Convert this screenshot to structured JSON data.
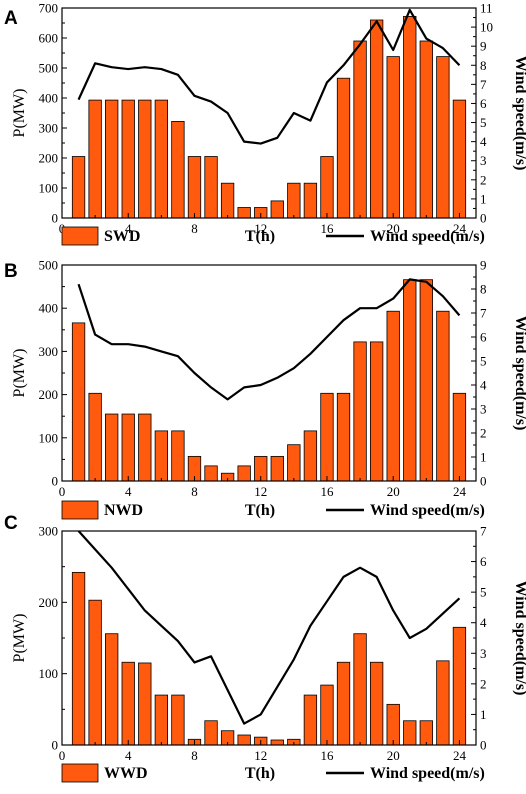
{
  "chart_data": [
    {
      "type": "bar",
      "panel": "A",
      "x": [
        1,
        2,
        3,
        4,
        5,
        6,
        7,
        8,
        9,
        10,
        11,
        12,
        13,
        14,
        15,
        16,
        17,
        18,
        19,
        20,
        21,
        22,
        23,
        24
      ],
      "xticks": [
        0,
        4,
        8,
        12,
        16,
        20,
        24
      ],
      "xlim": [
        0,
        25
      ],
      "xlabel": "T(h)",
      "ylabel": "P(MW)",
      "ylim": [
        0,
        700
      ],
      "yticks": [
        0,
        100,
        200,
        300,
        400,
        500,
        600,
        700
      ],
      "y2label": "Wind speed(m/s)",
      "y2lim": [
        0,
        11
      ],
      "y2ticks": [
        0,
        1,
        2,
        3,
        4,
        5,
        6,
        7,
        8,
        9,
        10,
        11
      ],
      "series": [
        {
          "name": "SWD",
          "kind": "bar",
          "color": "#FF5A0E",
          "values": [
            205,
            393,
            393,
            393,
            393,
            393,
            322,
            205,
            205,
            116,
            35,
            35,
            57,
            116,
            116,
            205,
            466,
            590,
            660,
            538,
            672,
            590,
            538,
            393
          ]
        },
        {
          "name": "Wind speed(m/s)",
          "kind": "line",
          "axis": "right",
          "color": "#000000",
          "values": [
            6.2,
            8.1,
            7.9,
            7.8,
            7.9,
            7.8,
            7.5,
            6.4,
            6.1,
            5.5,
            4.0,
            3.9,
            4.2,
            5.5,
            5.1,
            7.1,
            8.0,
            9.1,
            10.3,
            8.8,
            10.9,
            9.4,
            8.9,
            8.0
          ]
        }
      ]
    },
    {
      "type": "bar",
      "panel": "B",
      "x": [
        1,
        2,
        3,
        4,
        5,
        6,
        7,
        8,
        9,
        10,
        11,
        12,
        13,
        14,
        15,
        16,
        17,
        18,
        19,
        20,
        21,
        22,
        23,
        24
      ],
      "xticks": [
        0,
        4,
        8,
        12,
        16,
        20,
        24
      ],
      "xlim": [
        0,
        25
      ],
      "xlabel": "T(h)",
      "ylabel": "P(MW)",
      "ylim": [
        0,
        500
      ],
      "yticks": [
        0,
        100,
        200,
        300,
        400,
        500
      ],
      "y2label": "Wind speed(m/s)",
      "y2lim": [
        0,
        9
      ],
      "y2ticks": [
        0,
        1,
        2,
        3,
        4,
        5,
        6,
        7,
        8,
        9
      ],
      "series": [
        {
          "name": "NWD",
          "kind": "bar",
          "color": "#FF5A0E",
          "values": [
            366,
            203,
            155,
            155,
            155,
            116,
            116,
            57,
            35,
            18,
            35,
            57,
            57,
            84,
            116,
            203,
            203,
            322,
            322,
            393,
            466,
            466,
            393,
            203
          ]
        },
        {
          "name": "Wind speed(m/s)",
          "kind": "line",
          "axis": "right",
          "color": "#000000",
          "values": [
            8.2,
            6.1,
            5.7,
            5.7,
            5.6,
            5.4,
            5.2,
            4.5,
            3.9,
            3.4,
            3.9,
            4.0,
            4.3,
            4.7,
            5.3,
            6.0,
            6.7,
            7.2,
            7.2,
            7.6,
            8.4,
            8.3,
            7.7,
            6.9
          ]
        }
      ]
    },
    {
      "type": "bar",
      "panel": "C",
      "x": [
        1,
        2,
        3,
        4,
        5,
        6,
        7,
        8,
        9,
        10,
        11,
        12,
        13,
        14,
        15,
        16,
        17,
        18,
        19,
        20,
        21,
        22,
        23,
        24
      ],
      "xticks": [
        0,
        4,
        8,
        12,
        16,
        20,
        24
      ],
      "xlim": [
        0,
        25
      ],
      "xlabel": "T(h)",
      "ylabel": "P(MW)",
      "ylim": [
        0,
        300
      ],
      "yticks": [
        0,
        100,
        200,
        300
      ],
      "y2label": "Wind speed(m/s)",
      "y2lim": [
        0,
        7
      ],
      "y2ticks": [
        0,
        1,
        2,
        3,
        4,
        5,
        6,
        7
      ],
      "series": [
        {
          "name": "WWD",
          "kind": "bar",
          "color": "#FF5A0E",
          "values": [
            242,
            203,
            156,
            116,
            115,
            70,
            70,
            8,
            34,
            20,
            14,
            11,
            7,
            8,
            70,
            84,
            116,
            156,
            116,
            57,
            34,
            34,
            118,
            165
          ]
        },
        {
          "name": "Wind speed(m/s)",
          "kind": "line",
          "axis": "right",
          "color": "#000000",
          "values": [
            7.0,
            6.4,
            5.8,
            5.1,
            4.4,
            3.9,
            3.4,
            2.7,
            2.9,
            1.8,
            0.7,
            1.0,
            1.9,
            2.8,
            3.9,
            4.7,
            5.5,
            5.8,
            5.5,
            4.4,
            3.5,
            3.8,
            4.3,
            4.8
          ]
        }
      ]
    }
  ]
}
